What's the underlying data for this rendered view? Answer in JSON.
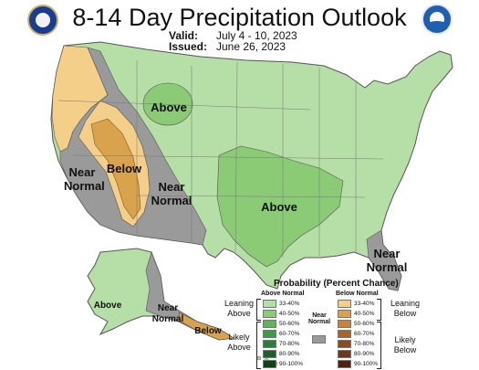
{
  "header": {
    "title": "8-14 Day Precipitation Outlook",
    "valid_label": "Valid:",
    "valid_value": "July 4 - 10, 2023",
    "issued_label": "Issued:",
    "issued_value": "June 26, 2023"
  },
  "logos": {
    "left": "department-of-commerce-seal",
    "right": "noaa-logo",
    "right_text": "NOAA"
  },
  "colors": {
    "above_33_40": "#b5dfa7",
    "above_40_50": "#8ccb76",
    "below_33_40": "#f3cf8a",
    "below_40_50": "#d9a24c",
    "near_normal": "#9a9a9a",
    "water": "#ffffff",
    "borders": "#555555"
  },
  "map_labels": {
    "above_north": "Above",
    "below_west": "Below",
    "near_normal_west_1": "Near",
    "near_normal_west_2": "Normal",
    "near_normal_sw_1": "Near",
    "near_normal_sw_2": "Normal",
    "above_south": "Above",
    "near_normal_fl_1": "Near",
    "near_normal_fl_2": "Normal",
    "above_ak": "Above",
    "near_normal_ak_1": "Near",
    "near_normal_ak_2": "Normal",
    "below_ak": "Below"
  },
  "legend": {
    "title": "Probability (Percent Chance)",
    "above_header": "Above Normal",
    "below_header": "Below Normal",
    "near_header_1": "Near",
    "near_header_2": "Normal",
    "leaning_above_1": "Leaning",
    "leaning_above_2": "Above",
    "likely_above_1": "Likely",
    "likely_above_2": "Above",
    "leaning_below_1": "Leaning",
    "leaning_below_2": "Below",
    "likely_below_1": "Likely",
    "likely_below_2": "Below",
    "ranges": [
      "33-40%",
      "40-50%",
      "50-60%",
      "60-70%",
      "70-80%",
      "80-90%",
      "90-100%"
    ],
    "above_colors": [
      "#b5dfa7",
      "#8ccb76",
      "#5cb55a",
      "#3e9a4a",
      "#2a7d3a",
      "#1c6129",
      "#0e4319"
    ],
    "below_colors": [
      "#f3cf8a",
      "#d9a24c",
      "#c68339",
      "#a9652c",
      "#8b4c22",
      "#6e3819",
      "#4e2411"
    ],
    "near_color": "#9a9a9a"
  }
}
